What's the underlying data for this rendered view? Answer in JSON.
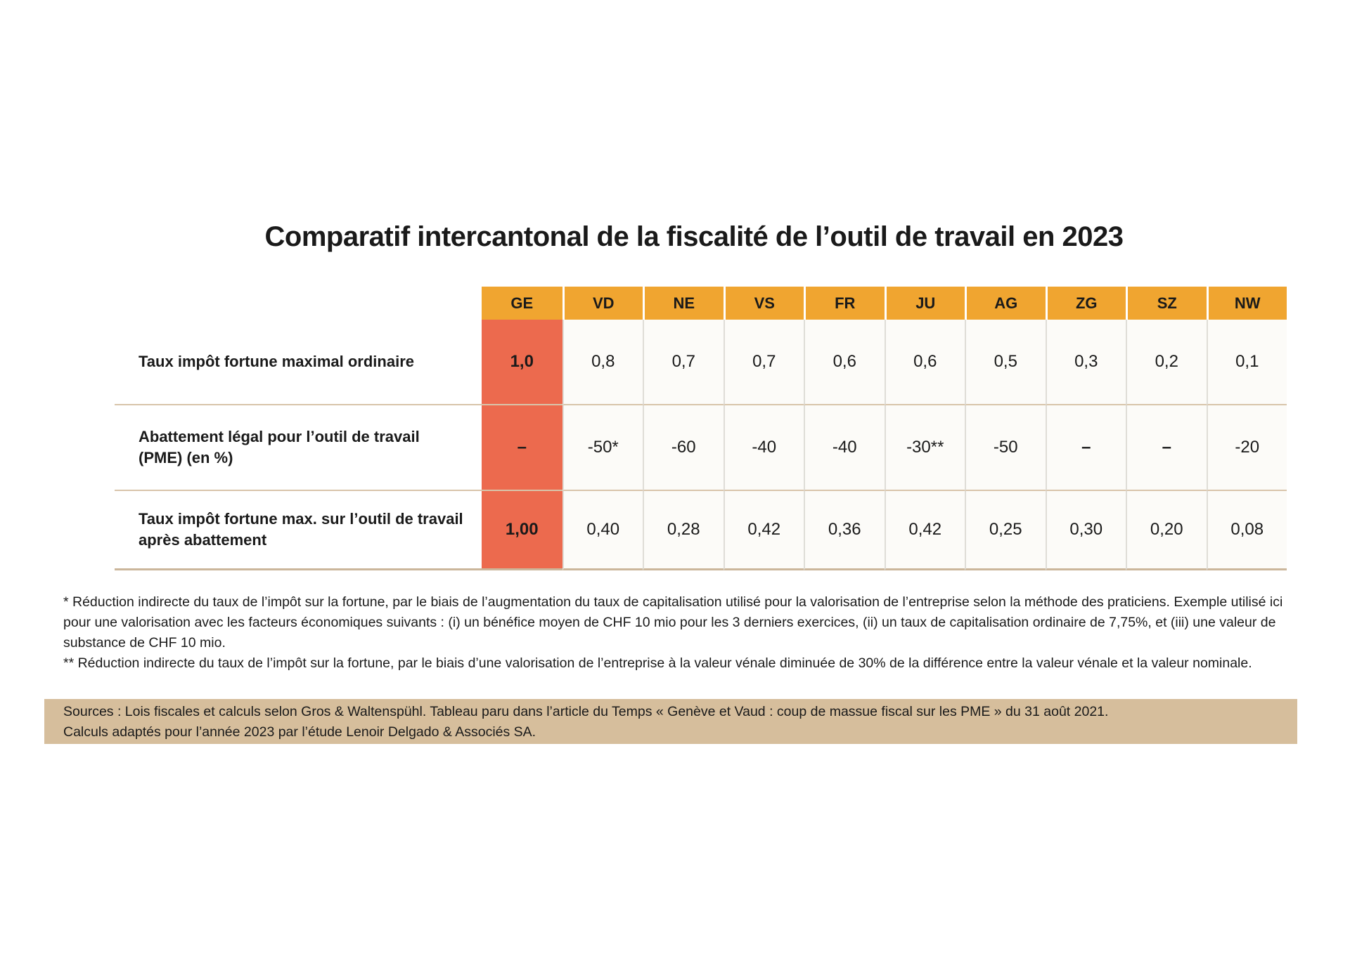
{
  "title": "Comparatif intercantonal de la fiscalité de l’outil de travail en 2023",
  "chart_data": {
    "type": "table",
    "title": "Comparatif intercantonal de la fiscalité de l’outil de travail en 2023",
    "columns": [
      "GE",
      "VD",
      "NE",
      "VS",
      "FR",
      "JU",
      "AG",
      "ZG",
      "SZ",
      "NW"
    ],
    "rows": [
      {
        "label": "Taux impôt fortune maximal ordinaire",
        "values": [
          "1,0",
          "0,8",
          "0,7",
          "0,7",
          "0,6",
          "0,6",
          "0,5",
          "0,3",
          "0,2",
          "0,1"
        ]
      },
      {
        "label": "Abattement légal pour l’outil de travail (PME) (en %)",
        "values": [
          "–",
          "-50*",
          "-60",
          "-40",
          "-40",
          "-30**",
          "-50",
          "–",
          "–",
          "-20"
        ]
      },
      {
        "label": "Taux impôt fortune max. sur l’outil de travail après abattement",
        "values": [
          "1,00",
          "0,40",
          "0,28",
          "0,42",
          "0,36",
          "0,42",
          "0,25",
          "0,30",
          "0,20",
          "0,08"
        ]
      }
    ],
    "highlighted_column": "GE",
    "legend_position": "none",
    "grid": "row-separators"
  },
  "footnotes": {
    "note1": "* Réduction indirecte du taux de l’impôt sur la fortune, par le biais de l’augmentation du taux de capitalisation utilisé pour la valorisation de l’entreprise selon la méthode des praticiens. Exemple utilisé ici pour une valorisation avec les facteurs économiques suivants : (i) un bénéfice moyen de CHF 10 mio pour les 3 derniers exercices, (ii) un taux de capitalisation ordinaire de 7,75%, et (iii) une valeur de substance de CHF 10 mio.",
    "note2": "** Réduction indirecte du taux de l’impôt sur la fortune, par le biais d’une valorisation de l’entreprise à la valeur vénale diminuée de 30% de la différence entre la valeur vénale et la valeur nominale."
  },
  "sources": {
    "line1": "Sources : Lois fiscales et calculs selon Gros & Waltenspühl. Tableau paru dans l’article du Temps « Genève et Vaud : coup de massue fiscal sur les PME » du 31 août 2021.",
    "line2": "Calculs adaptés pour l’année 2023 par l’étude Lenoir Delgado & Associés SA."
  },
  "colors": {
    "header_orange": "#F0A530",
    "highlight_red": "#EC6A4E",
    "sources_beige": "#D6BE9C",
    "row_separator_tan": "#D8C4AA",
    "table_bottom_tan": "#CBB69B",
    "cell_border_gray": "#DFDDD7",
    "cell_background": "#FCFBF8",
    "text": "#1A1A1A"
  }
}
